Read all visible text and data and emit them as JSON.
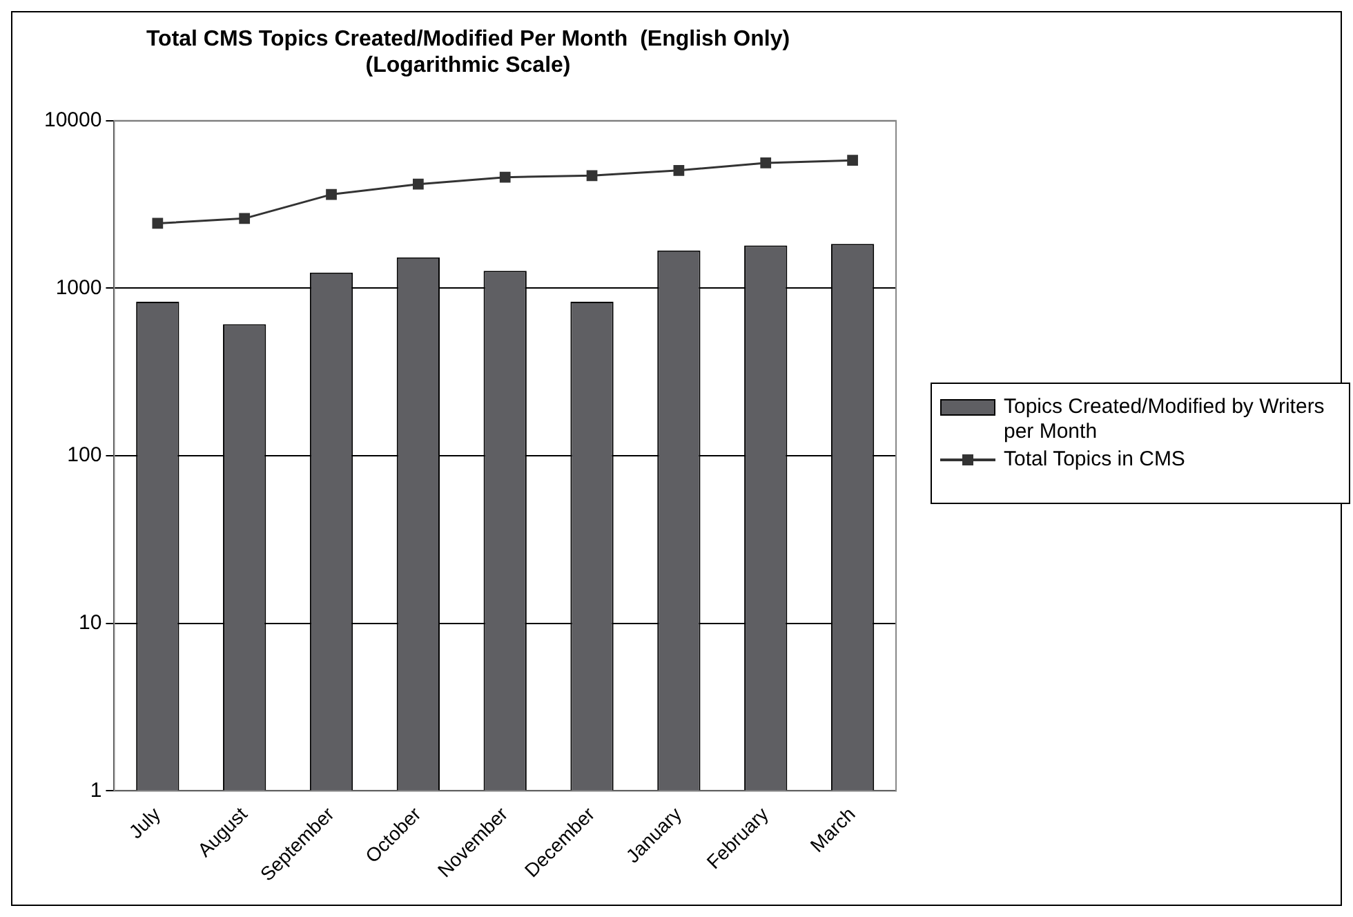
{
  "chart_data": {
    "type": "bar",
    "title": "Total CMS Topics Created/Modified Per Month  (English Only)",
    "subtitle": "(Logarithmic Scale)",
    "categories": [
      "July",
      "August",
      "September",
      "October",
      "November",
      "December",
      "January",
      "February",
      "March"
    ],
    "series": [
      {
        "name": "Topics Created/Modified by Writers per Month",
        "color": "#5f5f63",
        "values": [
          830,
          610,
          1240,
          1530,
          1270,
          830,
          1680,
          1800,
          1840
        ]
      },
      {
        "name": "Total Topics in CMS",
        "type": "line",
        "color": "#333333",
        "values": [
          2440,
          2610,
          3630,
          4180,
          4600,
          4700,
          5050,
          5600,
          5800
        ]
      }
    ],
    "log": "y",
    "ylim": [
      1,
      10000
    ],
    "yticks": [
      1,
      10,
      100,
      1000,
      10000
    ],
    "grid": "y",
    "legend": "right",
    "marker": "square",
    "line_style": "solid"
  }
}
